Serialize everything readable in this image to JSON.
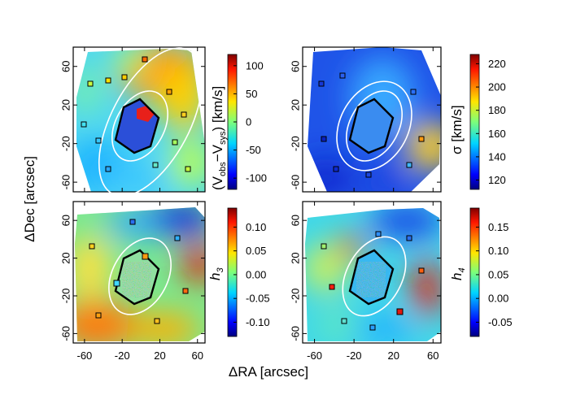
{
  "chart_data": {
    "type": "heatmap",
    "layout": "2x2",
    "xlabel": "ΔRA [arcsec]",
    "ylabel": "ΔDec [arcsec]",
    "x_ticks": [
      "-60",
      "-20",
      "20",
      "60"
    ],
    "y_ticks": [
      "60",
      "20",
      "-20",
      "-60"
    ],
    "xlim": [
      -72,
      68
    ],
    "ylim": [
      -70,
      80
    ],
    "panels": [
      {
        "id": "velocity",
        "colorbar_label": "(V_obs−V_sys) [km/s]",
        "colorbar_label_parts": [
          "(V",
          "obs",
          "−V",
          "sys",
          ") [km/s]"
        ],
        "vmin": -120,
        "vmax": 120,
        "colorbar_ticks": [
          "100",
          "50",
          "0",
          "-50",
          "-100"
        ],
        "colorbar_tick_values": [
          100,
          50,
          0,
          -50,
          -100
        ]
      },
      {
        "id": "dispersion",
        "colorbar_label": "σ [km/s]",
        "vmin": 112,
        "vmax": 228,
        "colorbar_ticks": [
          "220",
          "200",
          "180",
          "160",
          "140",
          "120"
        ],
        "colorbar_tick_values": [
          220,
          200,
          180,
          160,
          140,
          120
        ]
      },
      {
        "id": "h3",
        "colorbar_label": "h3",
        "colorbar_label_parts": [
          "h",
          "3"
        ],
        "vmin": -0.13,
        "vmax": 0.14,
        "colorbar_ticks": [
          "0.10",
          "0.05",
          "0.00",
          "-0.05",
          "-0.10"
        ],
        "colorbar_tick_values": [
          0.1,
          0.05,
          0.0,
          -0.05,
          -0.1
        ]
      },
      {
        "id": "h4",
        "colorbar_label": "h4",
        "colorbar_label_parts": [
          "h",
          "4"
        ],
        "vmin": -0.08,
        "vmax": 0.19,
        "colorbar_ticks": [
          "0.15",
          "0.10",
          "0.05",
          "0.00",
          "-0.05"
        ],
        "colorbar_tick_values": [
          0.15,
          0.1,
          0.05,
          0.0,
          -0.05
        ]
      }
    ]
  }
}
